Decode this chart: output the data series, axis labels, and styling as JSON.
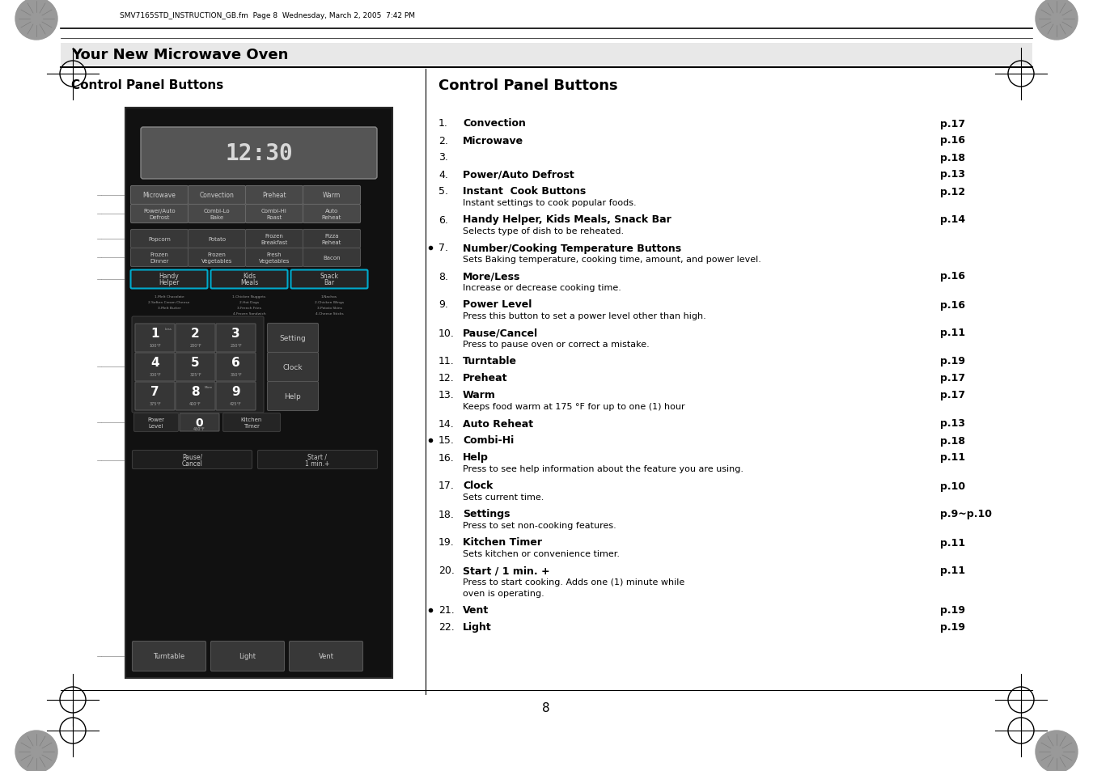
{
  "page_title": "Your New Microwave Oven",
  "left_section_title": "Control Panel Buttons",
  "right_section_title": "Control Panel Buttons",
  "header_text": "SMV7165STD_INSTRUCTION_GB.fm  Page 8  Wednesday, March 2, 2005  7:42 PM",
  "page_number": "8",
  "items": [
    {
      "num": "1.",
      "bold": "Convection",
      "desc": "",
      "page": "p.17"
    },
    {
      "num": "2.",
      "bold": "Microwave",
      "desc": "",
      "page": "p.16"
    },
    {
      "num": "3.",
      "bold": "",
      "desc": "",
      "page": "p.18"
    },
    {
      "num": "4.",
      "bold": "Power/Auto Defrost",
      "desc": "",
      "page": "p.13"
    },
    {
      "num": "5.",
      "bold": "Instant  Cook Buttons",
      "desc": "Instant settings to cook popular foods.",
      "page": "p.12"
    },
    {
      "num": "6.",
      "bold": "Handy Helper, Kids Meals, Snack Bar",
      "desc": "Selects type of dish to be reheated.",
      "page": "p.14"
    },
    {
      "num": "7.",
      "bold": "Number/Cooking Temperature Buttons",
      "desc": "Sets Baking temperature, cooking time, amount, and power level.",
      "page": "",
      "bullet": true
    },
    {
      "num": "8.",
      "bold": "More/Less",
      "desc": "Increase or decrease cooking time.",
      "page": "p.16"
    },
    {
      "num": "9.",
      "bold": "Power Level",
      "desc": "Press this button to set a power level other than high.",
      "page": "p.16"
    },
    {
      "num": "10.",
      "bold": "Pause/Cancel",
      "desc": "Press to pause oven or correct a mistake.",
      "page": "p.11"
    },
    {
      "num": "11.",
      "bold": "Turntable",
      "desc": "",
      "page": "p.19"
    },
    {
      "num": "12.",
      "bold": "Preheat",
      "desc": "",
      "page": "p.17"
    },
    {
      "num": "13.",
      "bold": "Warm",
      "desc": "Keeps food warm at 175 °F for up to one (1) hour",
      "page": "p.17"
    },
    {
      "num": "14.",
      "bold": "Auto Reheat",
      "desc": "",
      "page": "p.13"
    },
    {
      "num": "15.",
      "bold": "Combi-Hi",
      "desc": "",
      "page": "p.18",
      "bullet": true
    },
    {
      "num": "16.",
      "bold": "Help",
      "desc": "Press to see help information about the feature you are using.",
      "page": "p.11"
    },
    {
      "num": "17.",
      "bold": "Clock",
      "desc": "Sets current time.",
      "page": "p.10"
    },
    {
      "num": "18.",
      "bold": "Settings",
      "desc": "Press to set non-cooking features.",
      "page": "p.9~p.10"
    },
    {
      "num": "19.",
      "bold": "Kitchen Timer",
      "desc": "Sets kitchen or convenience timer.",
      "page": "p.11"
    },
    {
      "num": "20.",
      "bold": "Start / 1 min. +",
      "desc": "Press to start cooking. Adds one (1) minute while\noven is operating.",
      "page": "p.11"
    },
    {
      "num": "21.",
      "bold": "Vent",
      "desc": "",
      "page": "p.19",
      "bullet": true
    },
    {
      "num": "22.",
      "bold": "Light",
      "desc": "",
      "page": "p.19"
    }
  ],
  "background_color": "#ffffff",
  "text_color": "#000000",
  "panel_bg": "#111111",
  "button_bg": "#4a4a4a",
  "button_text": "#cccccc",
  "display_bg": "#585858",
  "display_text": "#d0d0d0",
  "cyan_border": "#00aacc"
}
